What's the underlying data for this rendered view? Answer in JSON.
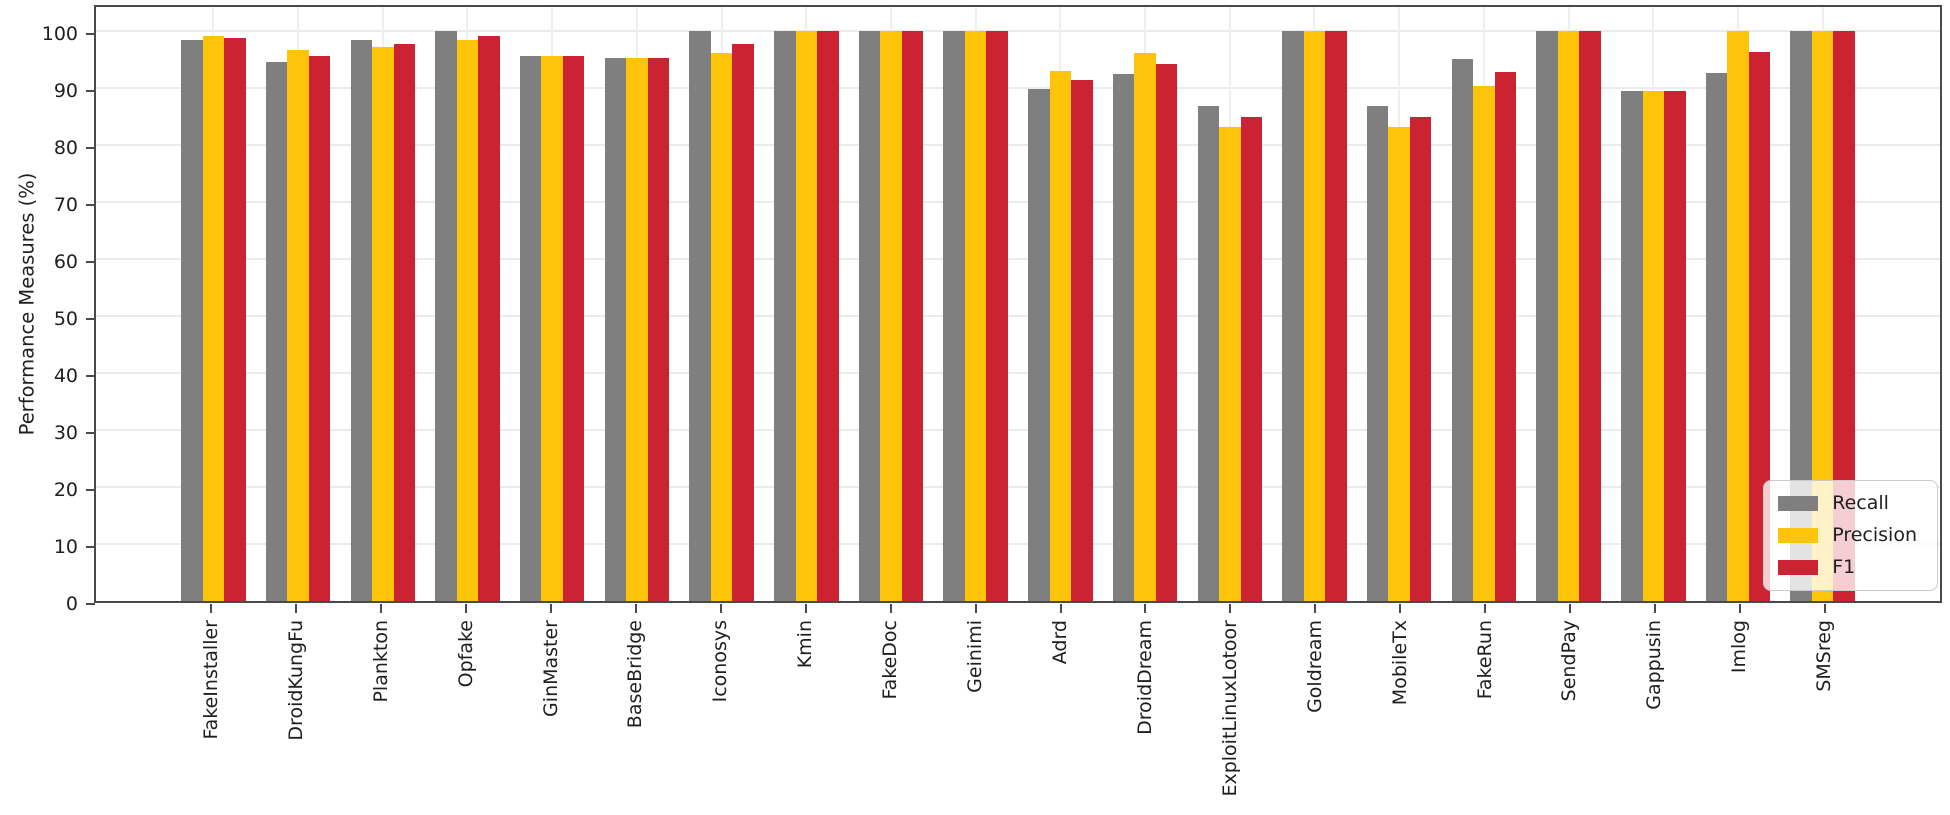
{
  "chart_data": {
    "type": "bar",
    "title": "",
    "xlabel": "",
    "ylabel": "Performance Measures (%)",
    "ylim": [
      0,
      105
    ],
    "yticks": [
      0,
      10,
      20,
      30,
      40,
      50,
      60,
      70,
      80,
      90,
      100
    ],
    "grid": true,
    "legend_position": "lower right",
    "categories": [
      "FakeInstaller",
      "DroidKungFu",
      "Plankton",
      "Opfake",
      "GinMaster",
      "BaseBridge",
      "Iconosys",
      "Kmin",
      "FakeDoc",
      "Geinimi",
      "Adrd",
      "DroidDream",
      "ExploitLinuxLotoor",
      "Goldream",
      "MobileTx",
      "FakeRun",
      "SendPay",
      "Gappusin",
      "Imlog",
      "SMSreg"
    ],
    "series": [
      {
        "name": "Recall",
        "color": "#7f7f7f",
        "values": [
          98.4,
          94.6,
          98.4,
          100.0,
          95.7,
          95.3,
          100.0,
          100.0,
          100.0,
          100.0,
          89.9,
          92.4,
          86.8,
          100.0,
          86.8,
          95.1,
          100.0,
          89.4,
          92.7,
          100.0
        ]
      },
      {
        "name": "Precision",
        "color": "#fdc40a",
        "values": [
          99.2,
          96.7,
          97.2,
          98.4,
          95.7,
          95.3,
          96.1,
          100.0,
          100.0,
          100.0,
          92.9,
          96.1,
          83.2,
          100.0,
          83.2,
          90.4,
          100.0,
          89.4,
          100.0,
          100.0
        ]
      },
      {
        "name": "F1",
        "color": "#cb2331",
        "values": [
          98.8,
          95.6,
          97.8,
          99.2,
          95.7,
          95.3,
          97.8,
          100.0,
          100.0,
          100.0,
          91.4,
          94.2,
          85.0,
          100.0,
          85.0,
          92.8,
          100.0,
          89.4,
          96.3,
          100.0
        ]
      }
    ]
  }
}
